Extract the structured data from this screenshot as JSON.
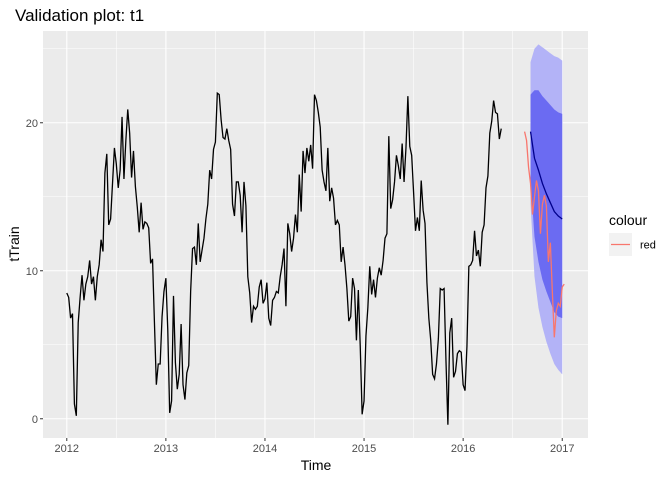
{
  "chart_data": {
    "type": "line",
    "title": "Validation plot: t1",
    "xlabel": "Time",
    "ylabel": "tTrain",
    "xlim": [
      2011.76,
      2017.26
    ],
    "ylim": [
      -1.3,
      26.2
    ],
    "x_ticks": [
      2012,
      2013,
      2014,
      2015,
      2016,
      2017
    ],
    "x_tick_labels": [
      "2012",
      "2013",
      "2014",
      "2015",
      "2016",
      "2017"
    ],
    "y_ticks": [
      0,
      10,
      20
    ],
    "y_tick_labels": [
      "0",
      "10",
      "20"
    ],
    "grid": true,
    "legend": {
      "title": "colour",
      "position": "right",
      "entries": [
        {
          "label": "red",
          "color": "#f8766d"
        }
      ]
    },
    "colors": {
      "panel": "#ebebeb",
      "grid": "#ffffff",
      "train": "#000000",
      "forecast": "#00008b",
      "band80": "#6b6bf2",
      "band95": "#b3b3f7",
      "actual": "#f8766d"
    },
    "train": {
      "x_start": 2012,
      "step": 0.01923,
      "values": [
        8.5,
        8.2,
        6.8,
        7.1,
        1.0,
        0.2,
        6.5,
        8.2,
        9.7,
        8.0,
        9.1,
        9.6,
        10.7,
        9.1,
        9.6,
        8.0,
        9.6,
        10.4,
        12.1,
        11.3,
        16.6,
        17.9,
        13.1,
        13.5,
        15.9,
        18.3,
        17.2,
        15.6,
        16.8,
        20.4,
        16.2,
        18.8,
        20.9,
        19.3,
        16.3,
        18.1,
        15.7,
        14.3,
        12.6,
        14.6,
        12.8,
        13.3,
        13.2,
        12.9,
        10.5,
        10.8,
        6.5,
        2.3,
        3.7,
        3.7,
        6.9,
        8.6,
        9.5,
        6.0,
        0.4,
        1.2,
        8.3,
        3.8,
        2.0,
        3.0,
        6.4,
        2.3,
        1.3,
        3.1,
        3.6,
        8.6,
        11.5,
        11.6,
        10.4,
        13.2,
        10.6,
        11.4,
        12.2,
        13.5,
        14.5,
        16.8,
        16.2,
        18.2,
        18.7,
        22.0,
        21.9,
        20.2,
        19.0,
        18.9,
        19.6,
        18.8,
        18.2,
        14.5,
        13.7,
        16.0,
        16.0,
        15.1,
        12.6,
        16.0,
        14.4,
        9.6,
        8.5,
        6.5,
        7.6,
        7.4,
        7.6,
        8.9,
        9.4,
        7.8,
        8.1,
        9.2,
        6.8,
        6.3,
        8.0,
        8.2,
        8.6,
        8.5,
        9.6,
        10.4,
        11.5,
        7.6,
        13.2,
        12.5,
        11.3,
        12.2,
        13.8,
        12.6,
        16.5,
        14.0,
        18.1,
        16.6,
        18.3,
        17.4,
        18.5,
        16.9,
        21.9,
        21.5,
        20.7,
        19.7,
        16.8,
        16.0,
        15.4,
        18.3,
        14.7,
        15.6,
        14.9,
        13.1,
        13.4,
        13.1,
        10.6,
        11.6,
        10.4,
        8.8,
        6.6,
        6.9,
        9.5,
        8.8,
        5.3,
        8.7,
        4.9,
        0.3,
        1.2,
        5.6,
        7.5,
        10.3,
        8.4,
        9.4,
        8.2,
        9.5,
        10.2,
        9.7,
        10.7,
        12.2,
        12.5,
        19.1,
        14.2,
        14.8,
        16.0,
        17.8,
        17.1,
        16.2,
        18.6,
        16.0,
        18.3,
        21.8,
        18.4,
        17.8,
        15.3,
        12.7,
        13.6,
        12.7,
        16.1,
        14.1,
        13.2,
        9.2,
        6.8,
        5.3,
        3.0,
        2.7,
        3.7,
        5.4,
        8.8,
        8.7,
        8.8,
        3.9,
        -0.4,
        5.8,
        6.8,
        2.8,
        3.2,
        4.4,
        4.6,
        4.5,
        2.3,
        1.9,
        4.9,
        10.3,
        10.4,
        10.7,
        12.7,
        11.0,
        11.4,
        10.3,
        12.6,
        13.1,
        15.6,
        16.4,
        19.3,
        20.1,
        21.5,
        20.7,
        20.6,
        18.9,
        19.6
      ]
    },
    "forecast": {
      "x": [
        2016.68,
        2016.72,
        2016.76,
        2016.8,
        2016.84,
        2016.88,
        2016.92,
        2016.96,
        2017.0
      ],
      "mean": [
        19.4,
        17.6,
        16.8,
        15.9,
        15.2,
        14.6,
        14.0,
        13.7,
        13.5
      ],
      "lo80": [
        16.2,
        12.3,
        10.6,
        9.4,
        8.6,
        7.9,
        7.2,
        6.9,
        6.8
      ],
      "hi80": [
        21.9,
        22.2,
        22.2,
        21.8,
        21.5,
        21.2,
        20.9,
        20.7,
        20.6
      ],
      "lo95": [
        14.5,
        9.6,
        7.5,
        6.2,
        5.2,
        4.4,
        3.7,
        3.3,
        3.0
      ],
      "hi95": [
        24.1,
        25.0,
        25.3,
        25.1,
        24.9,
        24.7,
        24.5,
        24.4,
        24.2
      ]
    },
    "actual": {
      "name": "red",
      "x": [
        2016.62,
        2016.64,
        2016.66,
        2016.68,
        2016.7,
        2016.72,
        2016.74,
        2016.76,
        2016.78,
        2016.8,
        2016.82,
        2016.84,
        2016.86,
        2016.88,
        2016.9,
        2016.92,
        2016.94,
        2016.96,
        2016.98,
        2017.0,
        2017.02
      ],
      "values": [
        19.4,
        18.8,
        17.0,
        15.9,
        13.8,
        15.0,
        16.1,
        15.4,
        12.5,
        14.5,
        15.1,
        14.4,
        10.6,
        11.9,
        8.6,
        5.5,
        7.3,
        7.8,
        7.6,
        8.9,
        9.1
      ]
    }
  }
}
